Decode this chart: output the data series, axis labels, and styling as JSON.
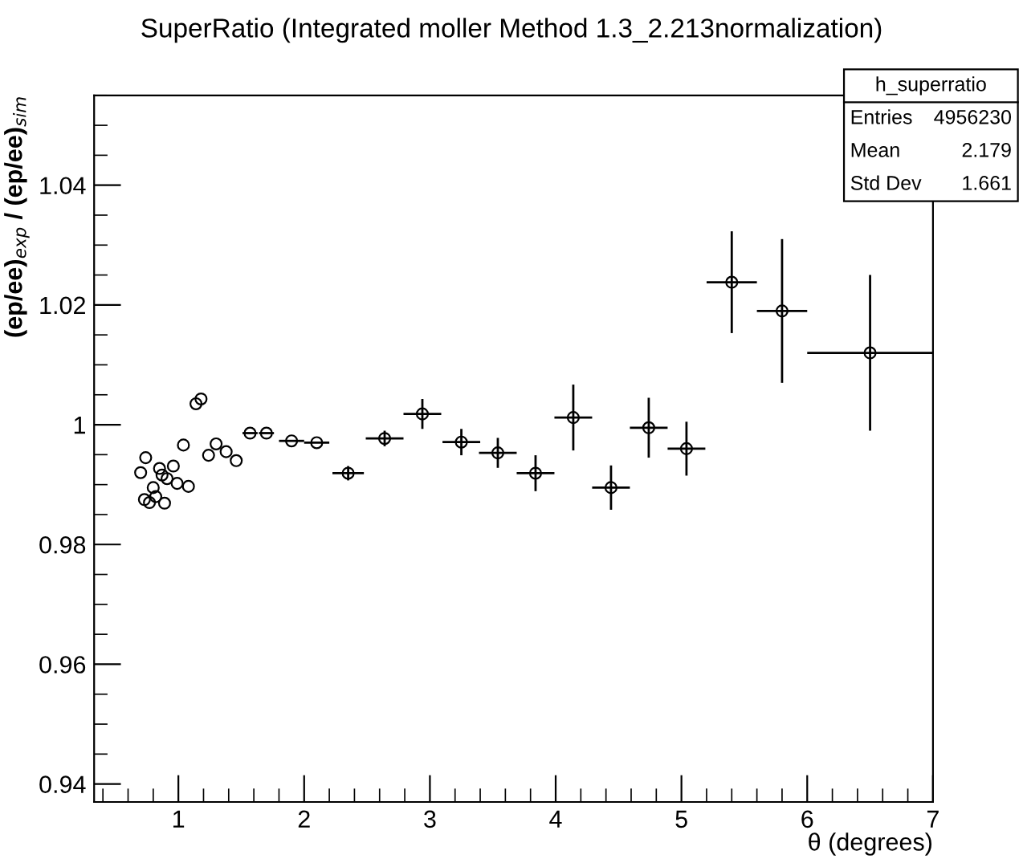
{
  "chart_data": {
    "type": "scatter",
    "title": "SuperRatio (Integrated moller Method 1.3_2.213normalization)",
    "xlabel": "θ (degrees)",
    "ylabel": "(ep/ee)$_{exp}$ / (ep/ee)$_{sim}$",
    "x": [
      0.7,
      0.73,
      0.74,
      0.77,
      0.8,
      0.82,
      0.85,
      0.87,
      0.89,
      0.91,
      0.96,
      0.99,
      1.04,
      1.08,
      1.14,
      1.18,
      1.24,
      1.3,
      1.38,
      1.46,
      1.57,
      1.7,
      1.9,
      2.1,
      2.35,
      2.64,
      2.94,
      3.25,
      3.54,
      3.84,
      4.14,
      4.44,
      4.74,
      5.04,
      5.4,
      5.8,
      6.5
    ],
    "values": [
      0.992,
      0.9875,
      0.9945,
      0.987,
      0.9895,
      0.988,
      0.9927,
      0.9916,
      0.9869,
      0.991,
      0.9931,
      0.9902,
      0.9966,
      0.9897,
      1.0035,
      1.0043,
      0.9949,
      0.9968,
      0.9955,
      0.994,
      0.9986,
      0.9986,
      0.9973,
      0.997,
      0.9919,
      0.9977,
      1.0018,
      0.9971,
      0.9953,
      0.9919,
      1.0012,
      0.9895,
      0.9995,
      0.996,
      1.0238,
      1.019,
      1.012
    ],
    "errors": [
      null,
      null,
      null,
      null,
      null,
      null,
      null,
      null,
      null,
      null,
      null,
      null,
      null,
      null,
      null,
      null,
      null,
      null,
      null,
      null,
      null,
      null,
      null,
      null,
      0.0012,
      0.0013,
      0.0025,
      0.0022,
      0.0025,
      0.003,
      0.0055,
      0.0037,
      0.005,
      0.0045,
      0.0085,
      0.012,
      0.013
    ],
    "xerrors": [
      null,
      null,
      null,
      null,
      null,
      null,
      null,
      null,
      null,
      null,
      null,
      null,
      null,
      null,
      null,
      null,
      null,
      null,
      null,
      null,
      0.06,
      0.06,
      0.1,
      0.1,
      0.125,
      0.15,
      0.15,
      0.15,
      0.15,
      0.15,
      0.15,
      0.15,
      0.15,
      0.15,
      0.2,
      0.2,
      0.5
    ],
    "color": "#000000",
    "marker": "circle",
    "grid": false,
    "xlim": [
      0.33,
      7
    ],
    "xticks": [
      1,
      2,
      3,
      4,
      5,
      6,
      7
    ],
    "ylim": [
      0.937,
      1.055
    ],
    "yticks": [
      0.94,
      0.96,
      0.98,
      1,
      1.02,
      1.04
    ],
    "annotations": [
      "h_superratio",
      "Entries",
      "4956230",
      "Mean",
      "2.179",
      "Std Dev",
      "1.661"
    ]
  }
}
